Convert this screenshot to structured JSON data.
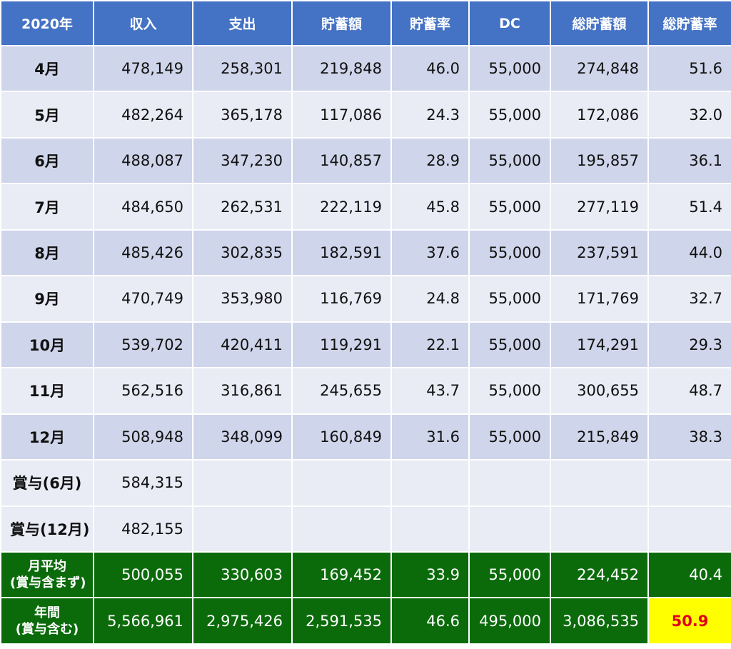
{
  "headers": [
    "2020年",
    "収入",
    "支出",
    "貯蓄額",
    "貯蓄率",
    "DC",
    "総貯蓄額",
    "総貯蓄率"
  ],
  "rows": [
    [
      "4月",
      "478,149",
      "258,301",
      "219,848",
      "46.0",
      "55,000",
      "274,848",
      "51.6"
    ],
    [
      "5月",
      "482,264",
      "365,178",
      "117,086",
      "24.3",
      "55,000",
      "172,086",
      "32.0"
    ],
    [
      "6月",
      "488,087",
      "347,230",
      "140,857",
      "28.9",
      "55,000",
      "195,857",
      "36.1"
    ],
    [
      "7月",
      "484,650",
      "262,531",
      "222,119",
      "45.8",
      "55,000",
      "277,119",
      "51.4"
    ],
    [
      "8月",
      "485,426",
      "302,835",
      "182,591",
      "37.6",
      "55,000",
      "237,591",
      "44.0"
    ],
    [
      "9月",
      "470,749",
      "353,980",
      "116,769",
      "24.8",
      "55,000",
      "171,769",
      "32.7"
    ],
    [
      "10月",
      "539,702",
      "420,411",
      "119,291",
      "22.1",
      "55,000",
      "174,291",
      "29.3"
    ],
    [
      "11月",
      "562,516",
      "316,861",
      "245,655",
      "43.7",
      "55,000",
      "300,655",
      "48.7"
    ],
    [
      "12月",
      "508,948",
      "348,099",
      "160,849",
      "31.6",
      "55,000",
      "215,849",
      "38.3"
    ]
  ],
  "bonus": [
    [
      "賞与(6月)",
      "584,315"
    ],
    [
      "賞与(12月)",
      "482,155"
    ]
  ],
  "monthly_avg": {
    "label_line1": "月平均",
    "label_line2": "(賞与含まず)",
    "values": [
      "500,055",
      "330,603",
      "169,452",
      "33.9",
      "55,000",
      "224,452",
      "40.4"
    ]
  },
  "annual": {
    "label_line1": "年間",
    "label_line2": "(賞与含む)",
    "values": [
      "5,566,961",
      "2,975,426",
      "2,591,535",
      "46.6",
      "495,000",
      "3,086,535",
      "50.9"
    ]
  },
  "colors": {
    "header": "#4472c4",
    "row_dark": "#cfd5ea",
    "row_light": "#e9ebf5",
    "summary": "#0b6b0b",
    "highlight_bg": "#ffff00",
    "highlight_text": "#e0001b"
  }
}
